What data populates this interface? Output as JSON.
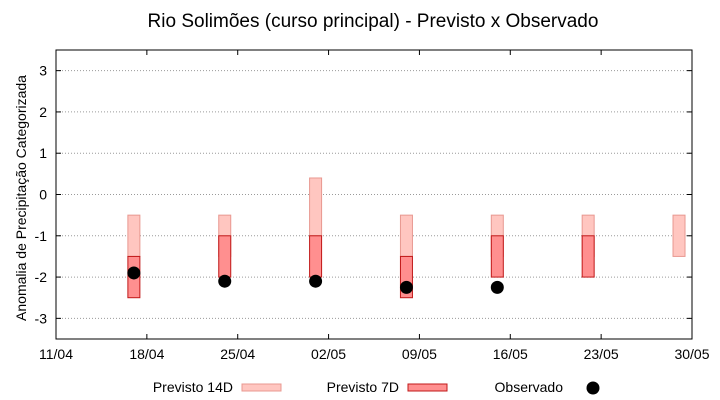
{
  "chart_data": {
    "type": "bar",
    "title": "Rio Solimões (curso principal) - Previsto x Observado",
    "xlabel": "",
    "ylabel": "Anomalia de Precipitação Categorizada",
    "x_ticks": [
      "11/04",
      "18/04",
      "25/04",
      "02/05",
      "09/05",
      "16/05",
      "23/05",
      "30/05"
    ],
    "y_ticks": [
      "-3",
      "-2",
      "-1",
      "0",
      "1",
      "2",
      "3"
    ],
    "ylim": [
      -3.5,
      3.5
    ],
    "grid": "horizontal dotted",
    "legend_position": "bottom",
    "series": [
      {
        "name": "Previsto 14D",
        "color": "#ffc6c0",
        "border": "#e89890",
        "bars": [
          {
            "x": "17/04",
            "low": -1.5,
            "high": -0.5
          },
          {
            "x": "24/04",
            "low": -1.5,
            "high": -0.5
          },
          {
            "x": "01/05",
            "low": -1.0,
            "high": 0.4
          },
          {
            "x": "08/05",
            "low": -1.5,
            "high": -0.5
          },
          {
            "x": "15/05",
            "low": -1.5,
            "high": -0.5
          },
          {
            "x": "22/05",
            "low": -1.5,
            "high": -0.5
          },
          {
            "x": "29/05",
            "low": -1.5,
            "high": -0.5
          }
        ]
      },
      {
        "name": "Previsto 7D",
        "color": "#ff8f8f",
        "border": "#c01818",
        "bars": [
          {
            "x": "17/04",
            "low": -2.5,
            "high": -1.5
          },
          {
            "x": "24/04",
            "low": -2.0,
            "high": -1.0
          },
          {
            "x": "01/05",
            "low": -2.0,
            "high": -1.0
          },
          {
            "x": "08/05",
            "low": -2.5,
            "high": -1.5
          },
          {
            "x": "15/05",
            "low": -2.0,
            "high": -1.0
          },
          {
            "x": "22/05",
            "low": -2.0,
            "high": -1.0
          }
        ]
      },
      {
        "name": "Observado",
        "color": "#000000",
        "points": [
          {
            "x": "17/04",
            "y": -1.9
          },
          {
            "x": "24/04",
            "y": -2.1
          },
          {
            "x": "01/05",
            "y": -2.1
          },
          {
            "x": "08/05",
            "y": -2.25
          },
          {
            "x": "15/05",
            "y": -2.25
          }
        ]
      }
    ]
  }
}
